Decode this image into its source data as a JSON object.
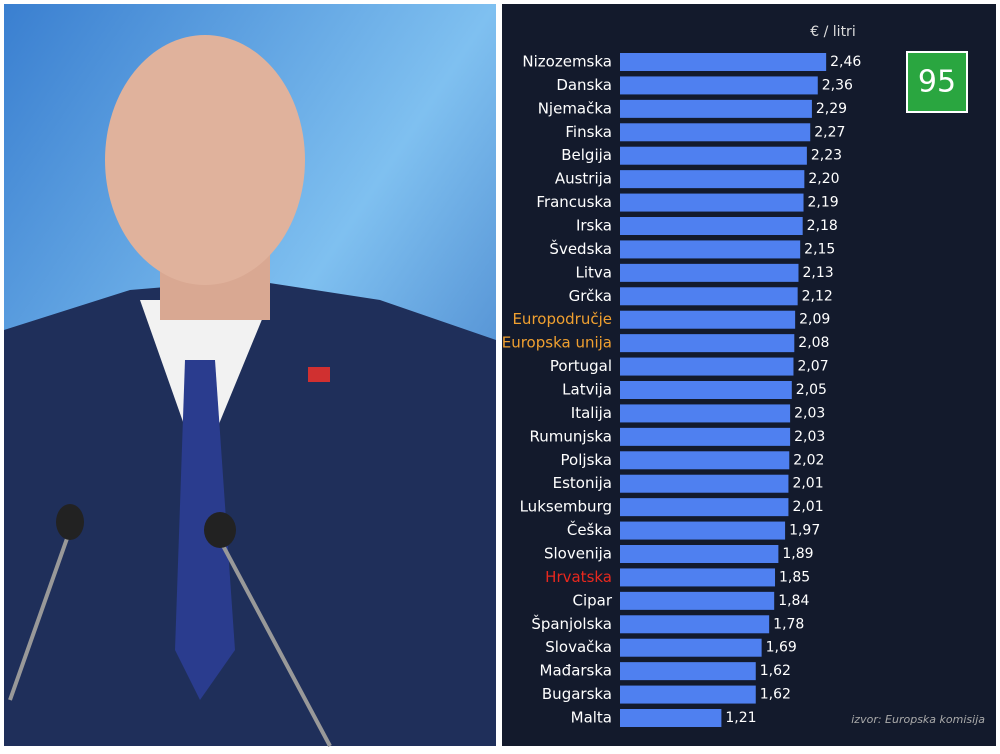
{
  "chart_data": {
    "type": "hbar",
    "unit_label": "€ / litri",
    "badge": "95",
    "source": "izvor: Europska komisija",
    "categories": [
      "Nizozemska",
      "Danska",
      "Njemačka",
      "Finska",
      "Belgija",
      "Austrija",
      "Francuska",
      "Irska",
      "Švedska",
      "Litva",
      "Grčka",
      "Europodručje",
      "Europska unija",
      "Portugal",
      "Latvija",
      "Italija",
      "Rumunjska",
      "Poljska",
      "Estonija",
      "Luksemburg",
      "Češka",
      "Slovenija",
      "Hrvatska",
      "Cipar",
      "Španjolska",
      "Slovačka",
      "Mađarska",
      "Bugarska",
      "Malta"
    ],
    "values": [
      2.46,
      2.36,
      2.29,
      2.27,
      2.23,
      2.2,
      2.19,
      2.18,
      2.15,
      2.13,
      2.12,
      2.09,
      2.08,
      2.07,
      2.05,
      2.03,
      2.03,
      2.02,
      2.01,
      2.01,
      1.97,
      1.89,
      1.85,
      1.84,
      1.78,
      1.69,
      1.62,
      1.62,
      1.21
    ],
    "value_labels": [
      "2,46",
      "2,36",
      "2,29",
      "2,27",
      "2,23",
      "2,20",
      "2,19",
      "2,18",
      "2,15",
      "2,13",
      "2,12",
      "2,09",
      "2,08",
      "2,07",
      "2,05",
      "2,03",
      "2,03",
      "2,02",
      "2,01",
      "2,01",
      "1,97",
      "1,89",
      "1,85",
      "1,84",
      "1,78",
      "1,69",
      "1,62",
      "1,62",
      "1,21"
    ],
    "color": "#4f80f0",
    "label_colors": [
      "#ffffff",
      "#ffffff",
      "#ffffff",
      "#ffffff",
      "#ffffff",
      "#ffffff",
      "#ffffff",
      "#ffffff",
      "#ffffff",
      "#ffffff",
      "#ffffff",
      "#f0a030",
      "#f0a030",
      "#ffffff",
      "#ffffff",
      "#ffffff",
      "#ffffff",
      "#ffffff",
      "#ffffff",
      "#ffffff",
      "#ffffff",
      "#ffffff",
      "#e8281e",
      "#ffffff",
      "#ffffff",
      "#ffffff",
      "#ffffff",
      "#ffffff",
      "#ffffff"
    ]
  }
}
